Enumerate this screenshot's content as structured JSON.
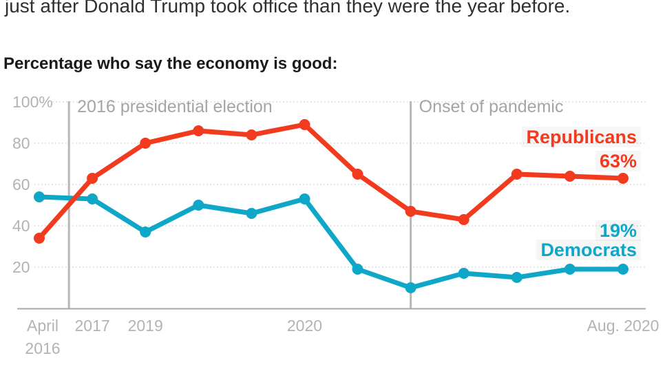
{
  "header": {
    "intro": "just after Donald Trump took office than they were the year before.",
    "title": "Percentage who say the economy is good:"
  },
  "chart_data": {
    "type": "line",
    "title": "Percentage who say the economy is good:",
    "xlabel": "",
    "ylabel": "",
    "ylim": [
      0,
      100
    ],
    "grid": "horizontal-dotted",
    "legend_position": "direct-labels-right",
    "n_points": 12,
    "y_ticks": [
      {
        "value": 100,
        "label": "100%"
      },
      {
        "value": 80,
        "label": "80"
      },
      {
        "value": 60,
        "label": "60"
      },
      {
        "value": 40,
        "label": "40"
      },
      {
        "value": 20,
        "label": "20"
      }
    ],
    "x_tick_labels": [
      {
        "index": 0,
        "lines": [
          "April",
          "2016"
        ]
      },
      {
        "index": 1,
        "lines": [
          "2017"
        ]
      },
      {
        "index": 2,
        "lines": [
          "2019"
        ]
      },
      {
        "index": 5,
        "lines": [
          "2020"
        ]
      },
      {
        "index": 11,
        "lines": [
          "Aug. 2020"
        ]
      }
    ],
    "series": [
      {
        "name": "Democrats",
        "color": "#0fa7c7",
        "end_value_label": "19%",
        "end_label": "Democrats",
        "values": [
          54,
          53,
          37,
          50,
          46,
          53,
          19,
          10,
          17,
          15,
          19,
          19
        ]
      },
      {
        "name": "Republicans",
        "color": "#f23b1e",
        "end_value_label": "63%",
        "end_label": "Republicans",
        "values": [
          34,
          63,
          80,
          86,
          84,
          89,
          65,
          47,
          43,
          65,
          64,
          63
        ]
      }
    ],
    "annotations": [
      {
        "label": "2016 presidential election",
        "x_index": 0.56
      },
      {
        "label": "Onset of pandemic",
        "x_index": 7
      }
    ]
  },
  "colors": {
    "republicans": "#f23b1e",
    "democrats": "#0fa7c7",
    "annotation_line": "#b7b7b7",
    "annotation_text": "#a5a5a5",
    "axis_text": "#b3b3b3",
    "gridline": "#d8d8d8",
    "baseline": "#a8a8a8"
  }
}
